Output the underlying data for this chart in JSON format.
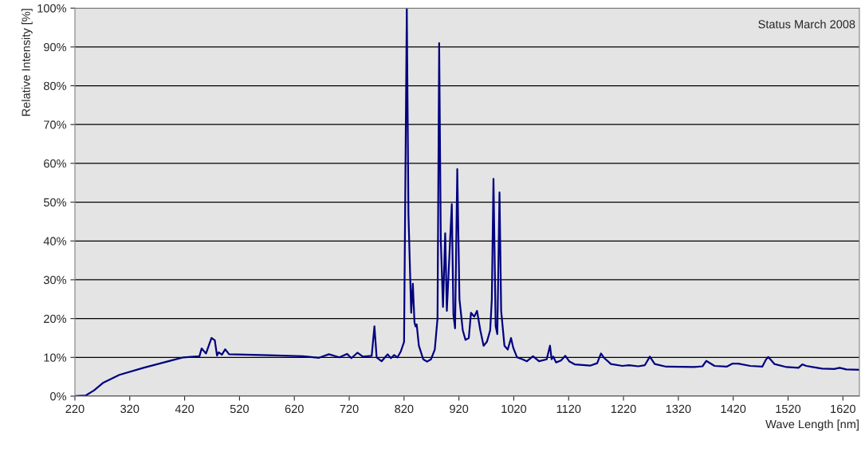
{
  "chart_data": {
    "type": "line",
    "xlabel": "Wave Length [nm]",
    "ylabel": "Relative Intensity [%]",
    "annotations": [
      "Status March 2008"
    ],
    "xlim": [
      220,
      1650
    ],
    "xticks": [
      220,
      320,
      420,
      520,
      620,
      720,
      820,
      920,
      1020,
      1120,
      1220,
      1320,
      1420,
      1520,
      1620
    ],
    "ylim": [
      0,
      100
    ],
    "yticks": [
      {
        "value": 0,
        "label": "0%"
      },
      {
        "value": 10,
        "label": "10%"
      },
      {
        "value": 20,
        "label": "20%"
      },
      {
        "value": 30,
        "label": "30%"
      },
      {
        "value": 40,
        "label": "40%"
      },
      {
        "value": 50,
        "label": "50%"
      },
      {
        "value": 60,
        "label": "60%"
      },
      {
        "value": 70,
        "label": "70%"
      },
      {
        "value": 80,
        "label": "80%"
      },
      {
        "value": 90,
        "label": "90%"
      },
      {
        "value": 100,
        "label": "100%"
      }
    ],
    "grid": "y",
    "legend": false,
    "marker": "none",
    "line_style": "solid",
    "series": [
      {
        "color": "#000080",
        "x": [
          220,
          240,
          255,
          272,
          301,
          345,
          396,
          418,
          447,
          451,
          459,
          469,
          475,
          479,
          482,
          488,
          494,
          501,
          560,
          636,
          665,
          683,
          702,
          716,
          724,
          735,
          745,
          761,
          766,
          770,
          779,
          790,
          796,
          802,
          808,
          814,
          820,
          825,
          828,
          833,
          836,
          839,
          841,
          843,
          847,
          855,
          862,
          869,
          876,
          881,
          884,
          887,
          891,
          895,
          898,
          907,
          910,
          913,
          917,
          921,
          927,
          932,
          938,
          942,
          948,
          953,
          959,
          965,
          971,
          977,
          980,
          983,
          987,
          990,
          994,
          997,
          1003,
          1009,
          1015,
          1019,
          1026,
          1036,
          1044,
          1055,
          1066,
          1080,
          1086,
          1089,
          1092,
          1097,
          1106,
          1114,
          1121,
          1131,
          1160,
          1172,
          1179,
          1185,
          1197,
          1218,
          1230,
          1247,
          1259,
          1268,
          1277,
          1298,
          1349,
          1364,
          1371,
          1386,
          1408,
          1419,
          1429,
          1451,
          1473,
          1480,
          1484,
          1495,
          1517,
          1539,
          1546,
          1553,
          1582,
          1604,
          1614,
          1626,
          1650
        ],
        "values": [
          0,
          0.2,
          1.5,
          3.5,
          5.5,
          7.3,
          9.2,
          10,
          10.3,
          12.3,
          11,
          15,
          14.4,
          10.5,
          11.3,
          10.7,
          12.1,
          10.8,
          10.6,
          10.3,
          9.9,
          10.8,
          10,
          10.9,
          9.8,
          11.2,
          10.2,
          10.4,
          18,
          10,
          9,
          10.8,
          9.8,
          10.6,
          10,
          11.5,
          14,
          100,
          47,
          21.5,
          29,
          19,
          18,
          18.5,
          13,
          9.5,
          8.9,
          9.5,
          12,
          20,
          91,
          40,
          23,
          42,
          22,
          49.5,
          21,
          17.5,
          58.5,
          25,
          17,
          14.5,
          15,
          21.5,
          20.5,
          22,
          17,
          13,
          14,
          17,
          25,
          56,
          18,
          16,
          52.5,
          22,
          13,
          12,
          15,
          12.5,
          10,
          9.5,
          9,
          10.3,
          9,
          9.5,
          13,
          9.5,
          10.2,
          8.7,
          9.2,
          10.4,
          9,
          8.2,
          7.9,
          8.5,
          11,
          9.8,
          8.3,
          7.8,
          8,
          7.7,
          8,
          10.2,
          8.3,
          7.6,
          7.5,
          7.7,
          9.1,
          7.8,
          7.6,
          8.4,
          8.4,
          7.8,
          7.6,
          9.5,
          10.1,
          8.3,
          7.5,
          7.3,
          8.2,
          7.8,
          7.1,
          7,
          7.3,
          6.9,
          6.8
        ]
      }
    ]
  }
}
